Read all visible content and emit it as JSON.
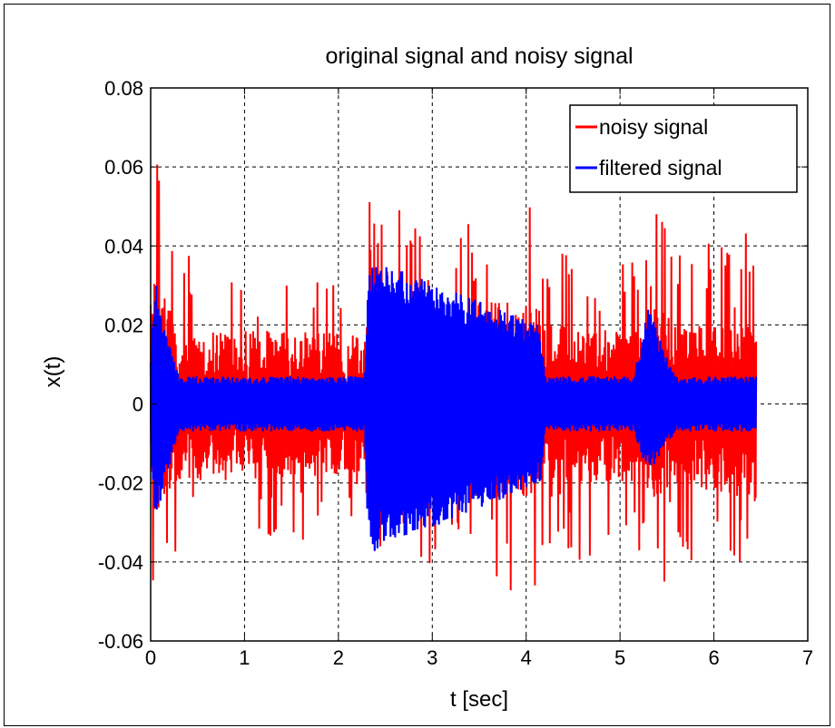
{
  "chart_data": {
    "type": "line",
    "title": "original signal and noisy signal",
    "xlabel": "t [sec]",
    "ylabel": "x(t)",
    "xlim": [
      0,
      7
    ],
    "ylim": [
      -0.06,
      0.08
    ],
    "x_ticks": [
      0,
      1,
      2,
      3,
      4,
      5,
      6,
      7
    ],
    "x_tick_labels": [
      "0",
      "1",
      "2",
      "3",
      "4",
      "5",
      "6",
      "7"
    ],
    "y_ticks": [
      -0.06,
      -0.04,
      -0.02,
      0,
      0.02,
      0.04,
      0.06,
      0.08
    ],
    "y_tick_labels": [
      "-0.06",
      "-0.04",
      "-0.02",
      "0",
      "0.02",
      "0.04",
      "0.06",
      "0.08"
    ],
    "grid": true,
    "legend_position": "top-right",
    "series": [
      {
        "name": "noisy signal",
        "color": "#ff0000",
        "x_range": [
          0,
          6.45
        ],
        "envelope": {
          "t": [
            0,
            0.05,
            0.3,
            2.28,
            2.32,
            4.15,
            4.2,
            5.2,
            5.4,
            5.6,
            6.45
          ],
          "upper": [
            0.045,
            0.067,
            0.04,
            0.035,
            0.057,
            0.05,
            0.04,
            0.04,
            0.05,
            0.04,
            0.045
          ],
          "lower": [
            -0.045,
            -0.056,
            -0.04,
            -0.035,
            -0.044,
            -0.048,
            -0.04,
            -0.04,
            -0.05,
            -0.04,
            -0.05
          ]
        }
      },
      {
        "name": "filtered signal",
        "color": "#0000ff",
        "x_range": [
          0,
          6.45
        ],
        "envelope": {
          "t": [
            0,
            0.05,
            0.15,
            0.3,
            2.28,
            2.32,
            4.15,
            4.2,
            5.15,
            5.3,
            5.5,
            5.6,
            6.45
          ],
          "upper": [
            0.012,
            0.034,
            0.02,
            0.007,
            0.007,
            0.037,
            0.02,
            0.007,
            0.007,
            0.025,
            0.012,
            0.007,
            0.007
          ],
          "lower": [
            -0.012,
            -0.03,
            -0.02,
            -0.007,
            -0.007,
            -0.038,
            -0.02,
            -0.007,
            -0.007,
            -0.018,
            -0.01,
            -0.007,
            -0.007
          ]
        }
      }
    ]
  }
}
